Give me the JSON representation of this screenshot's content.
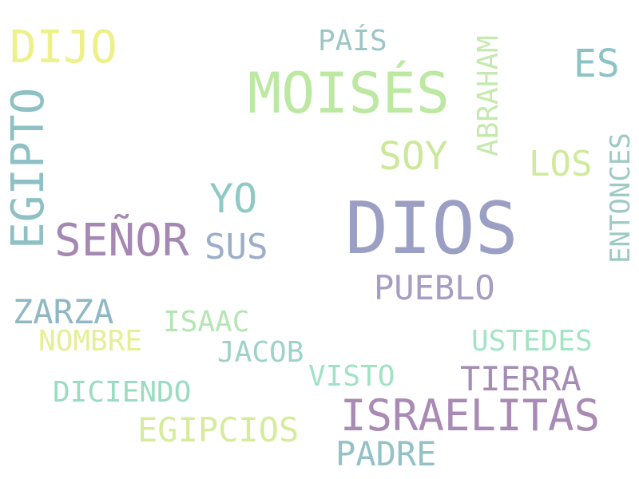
{
  "words": [
    {
      "text": "DIOS",
      "color": "#9b9fc4"
    },
    {
      "text": "MOISÉS",
      "color": "#bde8a2"
    },
    {
      "text": "EGIPTO",
      "color": "#8ec0c5"
    },
    {
      "text": "ISRAELITAS",
      "color": "#a98ab5"
    },
    {
      "text": "SEÑOR",
      "color": "#a487b2"
    },
    {
      "text": "DIJO",
      "color": "#eef08a"
    },
    {
      "text": "YO",
      "color": "#8ec9c6"
    },
    {
      "text": "SOY",
      "color": "#cce89a"
    },
    {
      "text": "ES",
      "color": "#8ec3c5"
    },
    {
      "text": "LOS",
      "color": "#d0ea9c"
    },
    {
      "text": "SUS",
      "color": "#9aaec8"
    },
    {
      "text": "PUEBLO",
      "color": "#a79cc2"
    },
    {
      "text": "PAÍS",
      "color": "#9cc6c6"
    },
    {
      "text": "ABRAHAM",
      "color": "#c6e9b0"
    },
    {
      "text": "ENTONCES",
      "color": "#9ecac4"
    },
    {
      "text": "ZARZA",
      "color": "#90b8c4"
    },
    {
      "text": "ISAAC",
      "color": "#b4e6b4"
    },
    {
      "text": "NOMBRE",
      "color": "#e4ef96"
    },
    {
      "text": "JACOB",
      "color": "#9ed2c9"
    },
    {
      "text": "USTEDES",
      "color": "#a3e4c4"
    },
    {
      "text": "DICIENDO",
      "color": "#99dcc2"
    },
    {
      "text": "VISTO",
      "color": "#9fe2c4"
    },
    {
      "text": "TIERRA",
      "color": "#a58cb4"
    },
    {
      "text": "EGIPCIOS",
      "color": "#d6ec9c"
    },
    {
      "text": "PADRE",
      "color": "#93c1c5"
    }
  ]
}
